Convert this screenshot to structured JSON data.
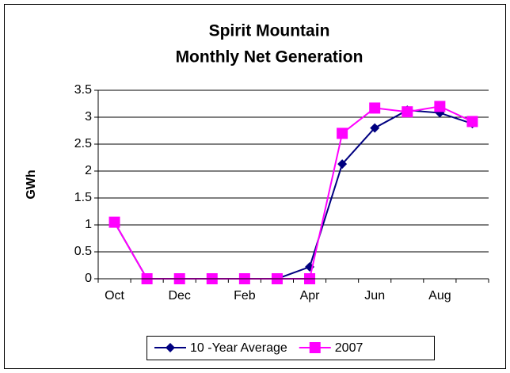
{
  "chart_data": {
    "type": "line",
    "title": "Spirit Mountain",
    "subtitle": "Monthly Net Generation",
    "y_label": "GWh",
    "categories": [
      "Oct",
      null,
      "Dec",
      null,
      "Feb",
      null,
      "Apr",
      null,
      "Jun",
      null,
      "Aug",
      null
    ],
    "series": [
      {
        "name": "10 -Year Average",
        "color": "#000080",
        "marker": "diamond",
        "values": [
          1.05,
          0,
          0,
          0,
          0,
          0,
          0.22,
          2.13,
          2.8,
          3.13,
          3.08,
          2.88
        ]
      },
      {
        "name": "2007",
        "color": "#ff00ff",
        "marker": "square",
        "values": [
          1.05,
          0,
          0,
          0,
          0,
          0,
          0,
          2.7,
          3.17,
          3.1,
          3.2,
          2.92
        ]
      }
    ],
    "ylim": [
      0,
      3.5
    ],
    "yticks": [
      0,
      0.5,
      1,
      1.5,
      2,
      2.5,
      3,
      3.5
    ],
    "grid": true,
    "legend": "bottom"
  }
}
